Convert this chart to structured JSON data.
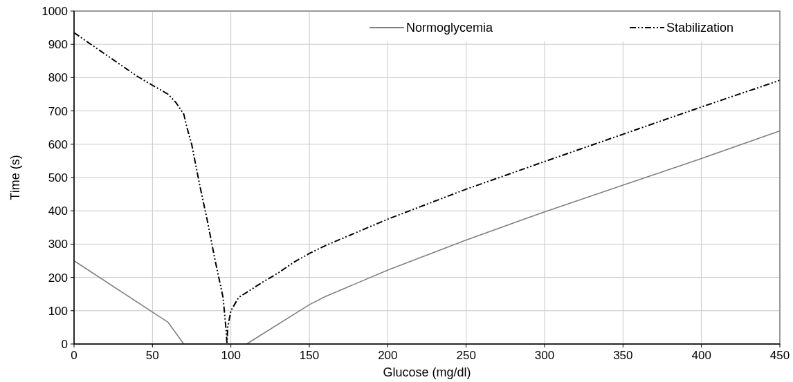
{
  "chart_data": {
    "type": "line",
    "xlabel": "Glucose (mg/dl)",
    "ylabel": "Time (s)",
    "xlim": [
      0,
      450
    ],
    "xticks": [
      0,
      50,
      100,
      150,
      200,
      250,
      300,
      350,
      400,
      450
    ],
    "ylim": [
      0,
      1000
    ],
    "yticks": [
      0,
      100,
      200,
      300,
      400,
      500,
      600,
      700,
      800,
      900,
      1000
    ],
    "grid": true,
    "legend": "top right",
    "marker": "none",
    "series": [
      {
        "name": "Normoglycemia",
        "color": "#808080",
        "line_style": "solid",
        "x": [
          0,
          60,
          70,
          110,
          150,
          160,
          200,
          250,
          300,
          350,
          400,
          450
        ],
        "values": [
          250,
          65,
          0,
          0,
          118,
          142,
          222,
          312,
          397,
          477,
          557,
          640
        ]
      },
      {
        "name": "Stabilization",
        "color": "#000000",
        "line_style": "dashed",
        "x": [
          0,
          20,
          40,
          50,
          60,
          65,
          70,
          72,
          75,
          80,
          85,
          90,
          95,
          97,
          97.5,
          98,
          100,
          105,
          110,
          120,
          130,
          140,
          150,
          160,
          200,
          250,
          300,
          350,
          400,
          450
        ],
        "values": [
          935,
          870,
          805,
          777,
          750,
          725,
          690,
          650,
          600,
          480,
          370,
          250,
          140,
          40,
          0,
          50,
          100,
          140,
          155,
          185,
          213,
          245,
          272,
          295,
          375,
          465,
          548,
          630,
          712,
          792
        ]
      }
    ]
  }
}
